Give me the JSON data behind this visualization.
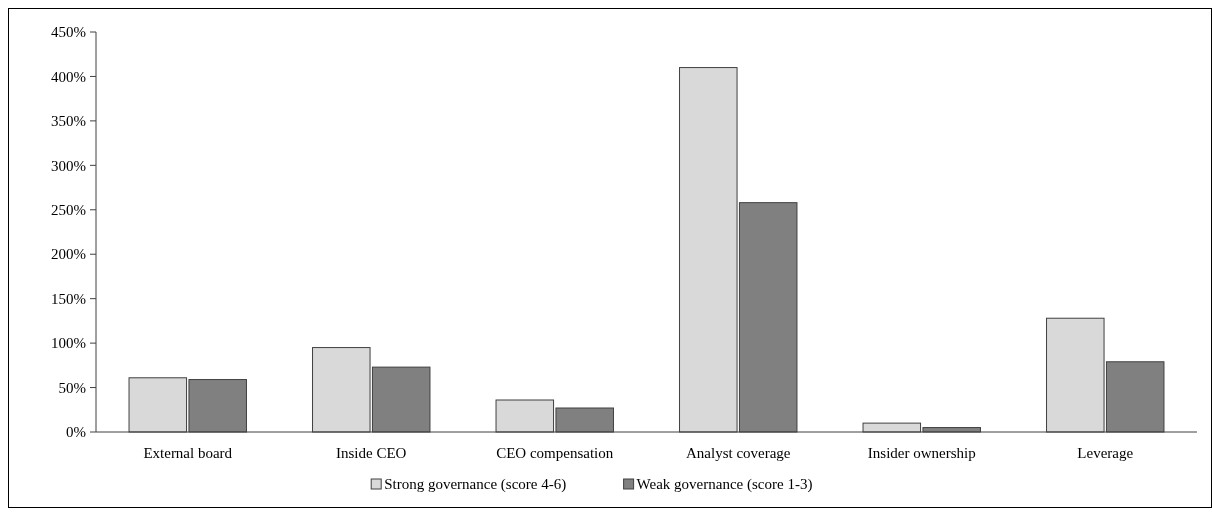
{
  "chart_data": {
    "type": "bar",
    "categories": [
      "External board",
      "Inside CEO",
      "CEO compensation",
      "Analyst coverage",
      "Insider ownership",
      "Leverage"
    ],
    "series": [
      {
        "name": "Strong governance (score 4-6)",
        "color": "#d9d9d9",
        "values": [
          61,
          95,
          36,
          410,
          10,
          128
        ]
      },
      {
        "name": "Weak governance (score 1-3)",
        "color": "#808080",
        "values": [
          59,
          73,
          27,
          258,
          5,
          79
        ]
      }
    ],
    "ylim": [
      0,
      450
    ],
    "yticks": [
      {
        "value": 0,
        "label": "0%"
      },
      {
        "value": 50,
        "label": "50%"
      },
      {
        "value": 100,
        "label": "100%"
      },
      {
        "value": 150,
        "label": "150%"
      },
      {
        "value": 200,
        "label": "200%"
      },
      {
        "value": 250,
        "label": "250%"
      },
      {
        "value": 300,
        "label": "300%"
      },
      {
        "value": 350,
        "label": "350%"
      },
      {
        "value": 400,
        "label": "400%"
      },
      {
        "value": 450,
        "label": "450%"
      }
    ],
    "legend": "bottom"
  }
}
